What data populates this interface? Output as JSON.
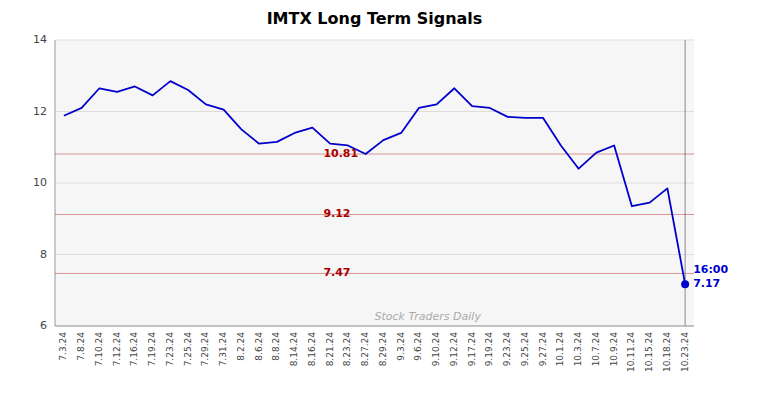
{
  "chart_data": {
    "type": "line",
    "title": "IMTX Long Term Signals",
    "categories": [
      "7.3.24",
      "7.8.24",
      "7.10.24",
      "7.12.24",
      "7.16.24",
      "7.19.24",
      "7.23.24",
      "7.25.24",
      "7.29.24",
      "7.31.24",
      "8.2.24",
      "8.6.24",
      "8.8.24",
      "8.14.24",
      "8.16.24",
      "8.21.24",
      "8.23.24",
      "8.27.24",
      "8.29.24",
      "9.3.24",
      "9.6.24",
      "9.10.24",
      "9.12.24",
      "9.17.24",
      "9.19.24",
      "9.23.24",
      "9.25.24",
      "9.27.24",
      "10.1.24",
      "10.3.24",
      "10.7.24",
      "10.9.24",
      "10.11.24",
      "10.15.24",
      "10.18.24",
      "10.23.24"
    ],
    "values": [
      11.88,
      12.1,
      12.65,
      12.55,
      12.7,
      12.45,
      12.85,
      12.6,
      12.2,
      12.05,
      11.5,
      11.1,
      11.15,
      11.4,
      11.55,
      11.1,
      11.05,
      10.81,
      11.2,
      11.4,
      12.1,
      12.2,
      12.65,
      12.15,
      12.1,
      11.85,
      11.82,
      11.82,
      11.05,
      10.4,
      10.85,
      11.05,
      9.35,
      9.45,
      9.85,
      7.17
    ],
    "color": "#0000cc",
    "marker": "endpoint",
    "ylim": [
      6,
      14
    ],
    "yticks": [
      6,
      8,
      10,
      12,
      14
    ],
    "grid": true,
    "annotations": [
      {
        "kind": "hline",
        "y": 10.81,
        "text": "10.81",
        "color": "#aa0000"
      },
      {
        "kind": "hline",
        "y": 9.12,
        "text": "9.12",
        "color": "#aa0000"
      },
      {
        "kind": "hline",
        "y": 7.47,
        "text": "7.47",
        "color": "#aa0000"
      },
      {
        "kind": "point",
        "text": "16:00"
      },
      {
        "kind": "point",
        "y": 7.17,
        "text": "7.17"
      },
      {
        "kind": "watermark",
        "text": "Stock Traders Daily"
      }
    ]
  }
}
